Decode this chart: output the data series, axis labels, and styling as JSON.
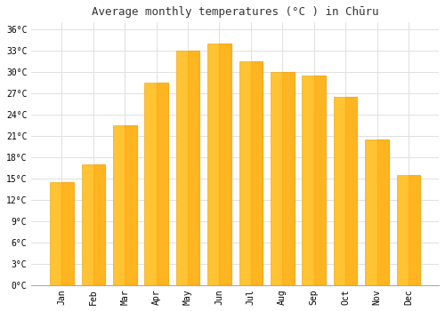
{
  "title": "Average monthly temperatures (°C ) in Chūru",
  "months": [
    "Jan",
    "Feb",
    "Mar",
    "Apr",
    "May",
    "Jun",
    "Jul",
    "Aug",
    "Sep",
    "Oct",
    "Nov",
    "Dec"
  ],
  "temperatures": [
    14.5,
    17.0,
    22.5,
    28.5,
    33.0,
    34.0,
    31.5,
    30.0,
    29.5,
    26.5,
    20.5,
    15.5
  ],
  "bar_color_top": "#FFC333",
  "bar_color_bottom": "#FF9900",
  "bar_edge_color": "#E8A000",
  "background_color": "#FFFFFF",
  "grid_color": "#E0E0E0",
  "ylim": [
    0,
    37
  ],
  "yticks": [
    0,
    3,
    6,
    9,
    12,
    15,
    18,
    21,
    24,
    27,
    30,
    33,
    36
  ],
  "title_fontsize": 9,
  "tick_fontsize": 7,
  "title_font": "monospace",
  "tick_font": "monospace"
}
